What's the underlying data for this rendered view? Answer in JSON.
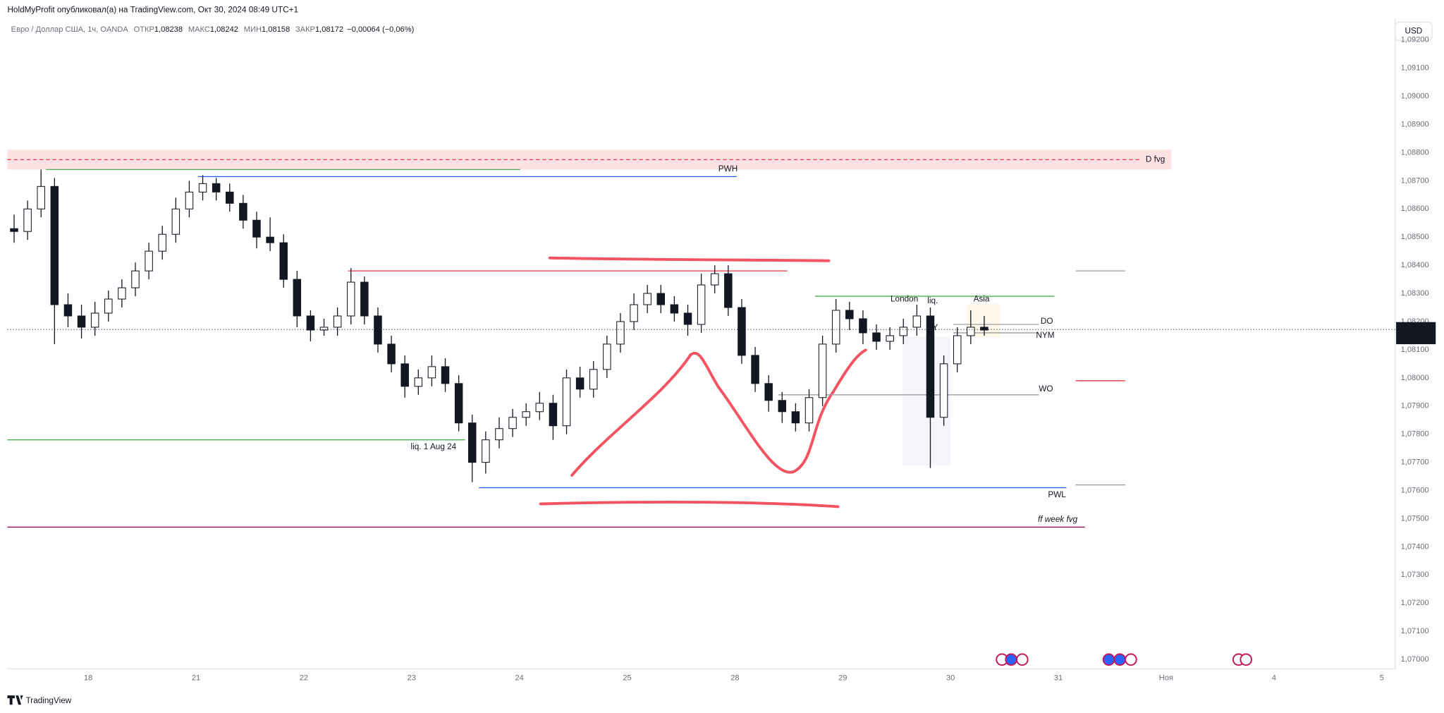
{
  "header": {
    "publisher": "HoldMyProfit опубликовал(а) на TradingView.com, Окт 30, 2024 08:49 UTC+1",
    "currency_button": "USD",
    "footer": "TradingView"
  },
  "chart_data": {
    "type": "candlestick",
    "symbol": "Евро / Доллар США, 1ч, OANDA",
    "info": [
      {
        "key": "ОТКР",
        "value": 1.08238,
        "label": "1,08238"
      },
      {
        "key": "МАКС",
        "value": 1.08242,
        "label": "1,08242"
      },
      {
        "key": "МИН",
        "value": 1.08158,
        "label": "1,08158"
      },
      {
        "key": "ЗАКР",
        "value": 1.08172,
        "label": "1,08172"
      }
    ],
    "change": "−0,00064 (−0,06%)",
    "last": {
      "value": 1.08172,
      "label": "1,08172"
    },
    "countdown": "10:13",
    "up_color": "#ffffff",
    "down_color": "#131722",
    "grid": false,
    "categories": [
      null,
      null,
      null,
      null,
      null,
      null,
      "18",
      null,
      null,
      null,
      null,
      null,
      null,
      null,
      "21",
      null,
      null,
      null,
      null,
      null,
      null,
      null,
      "22",
      null,
      null,
      null,
      null,
      null,
      null,
      null,
      "23",
      null,
      null,
      null,
      null,
      null,
      null,
      null,
      "24",
      null,
      null,
      null,
      null,
      null,
      null,
      null,
      "25",
      null,
      null,
      null,
      null,
      null,
      null,
      null,
      "28",
      null,
      null,
      null,
      null,
      null,
      null,
      null,
      "29",
      null,
      null,
      null,
      null,
      null,
      null,
      null,
      "30",
      null,
      null,
      null,
      null,
      null,
      null,
      null,
      "31",
      null,
      null,
      null,
      null,
      null,
      null,
      null,
      "Ноя",
      null,
      null,
      null,
      null,
      null,
      null,
      null,
      "4",
      null,
      null,
      null,
      null,
      null,
      null,
      null,
      "5"
    ],
    "open": [
      1.0853,
      1.0852,
      1.086,
      1.0868,
      1.0826,
      1.0822,
      1.0818,
      1.0823,
      1.0828,
      1.0832,
      1.0838,
      1.0845,
      1.0851,
      1.086,
      1.0866,
      1.0869,
      1.0866,
      1.0862,
      1.0856,
      1.085,
      1.0848,
      1.0835,
      1.0822,
      1.0817,
      1.0818,
      1.0822,
      1.0834,
      1.0822,
      1.0812,
      1.0805,
      1.0797,
      1.08,
      1.0804,
      1.0798,
      1.0784,
      1.077,
      1.0778,
      1.0782,
      1.0786,
      1.0788,
      1.0791,
      1.0783,
      1.08,
      1.0796,
      1.0803,
      1.0812,
      1.082,
      1.0826,
      1.083,
      1.0826,
      1.0823,
      1.0819,
      1.0833,
      1.0837,
      1.0825,
      1.0808,
      1.0798,
      1.0792,
      1.0788,
      1.0784,
      1.0793,
      1.0812,
      1.0824,
      1.0821,
      1.0816,
      1.0813,
      1.0815,
      1.0818,
      1.0822,
      1.0786,
      1.0805,
      1.0815,
      1.0818,
      null,
      null,
      null,
      null,
      null,
      null,
      null,
      null,
      null,
      null,
      null,
      null,
      null,
      null,
      null,
      null,
      null,
      null,
      null,
      null,
      null,
      null,
      null,
      null,
      null,
      null,
      null,
      null,
      null,
      null
    ],
    "high": [
      1.0858,
      1.0863,
      1.0874,
      1.0871,
      1.083,
      1.0826,
      1.0827,
      1.0831,
      1.0835,
      1.0841,
      1.0848,
      1.0854,
      1.0864,
      1.087,
      1.0872,
      1.0871,
      1.0869,
      1.0865,
      1.0859,
      1.0857,
      1.0851,
      1.0838,
      1.0824,
      1.0821,
      1.0825,
      1.0839,
      1.0836,
      1.0825,
      1.0815,
      1.0808,
      1.0803,
      1.0808,
      1.0807,
      1.0801,
      1.0787,
      1.0781,
      1.0786,
      1.0789,
      1.0791,
      1.0795,
      1.0794,
      1.0803,
      1.0804,
      1.0806,
      1.0815,
      1.0823,
      1.083,
      1.0833,
      1.0833,
      1.0829,
      1.0826,
      1.0837,
      1.084,
      1.084,
      1.0828,
      1.0811,
      1.0801,
      1.0795,
      1.0791,
      1.0796,
      1.0815,
      1.0828,
      1.0827,
      1.0824,
      1.0819,
      1.0818,
      1.0821,
      1.0826,
      1.0825,
      1.0808,
      1.0818,
      1.0824,
      1.0822,
      null,
      null,
      null,
      null,
      null,
      null,
      null,
      null,
      null,
      null,
      null,
      null,
      null,
      null,
      null,
      null,
      null,
      null,
      null,
      null,
      null,
      null,
      null,
      null,
      null,
      null,
      null,
      null,
      null,
      null
    ],
    "low": [
      1.0848,
      1.0849,
      1.0857,
      1.0812,
      1.0818,
      1.0814,
      1.0815,
      1.082,
      1.0825,
      1.0829,
      1.0835,
      1.0842,
      1.0848,
      1.0857,
      1.0863,
      1.0863,
      1.0859,
      1.0853,
      1.0846,
      1.0845,
      1.0832,
      1.0818,
      1.0813,
      1.0815,
      1.0815,
      1.0819,
      1.0819,
      1.0809,
      1.0802,
      1.0793,
      1.0794,
      1.0797,
      1.0795,
      1.0781,
      1.0763,
      1.0766,
      1.0775,
      1.0779,
      1.0783,
      1.0785,
      1.0778,
      1.078,
      1.0793,
      1.0793,
      1.08,
      1.0809,
      1.0817,
      1.0823,
      1.0823,
      1.082,
      1.0815,
      1.0816,
      1.083,
      1.0822,
      1.0805,
      1.0795,
      1.0788,
      1.0784,
      1.0781,
      1.0781,
      1.079,
      1.0809,
      1.0817,
      1.0812,
      1.081,
      1.081,
      1.0812,
      1.0815,
      1.0768,
      1.0783,
      1.0802,
      1.0812,
      1.0815,
      null,
      null,
      null,
      null,
      null,
      null,
      null,
      null,
      null,
      null,
      null,
      null,
      null,
      null,
      null,
      null,
      null,
      null,
      null,
      null,
      null,
      null,
      null,
      null,
      null,
      null,
      null,
      null,
      null,
      null
    ],
    "close": [
      1.0852,
      1.086,
      1.0868,
      1.0826,
      1.0822,
      1.0818,
      1.0823,
      1.0828,
      1.0832,
      1.0838,
      1.0845,
      1.0851,
      1.086,
      1.0866,
      1.0869,
      1.0866,
      1.0862,
      1.0856,
      1.085,
      1.0848,
      1.0835,
      1.0822,
      1.0817,
      1.0818,
      1.0822,
      1.0834,
      1.0822,
      1.0812,
      1.0805,
      1.0797,
      1.08,
      1.0804,
      1.0798,
      1.0784,
      1.077,
      1.0778,
      1.0782,
      1.0786,
      1.0788,
      1.0791,
      1.0783,
      1.08,
      1.0796,
      1.0803,
      1.0812,
      1.082,
      1.0826,
      1.083,
      1.0826,
      1.0823,
      1.0819,
      1.0833,
      1.0837,
      1.0825,
      1.0808,
      1.0798,
      1.0792,
      1.0788,
      1.0784,
      1.0793,
      1.0812,
      1.0824,
      1.0821,
      1.0816,
      1.0813,
      1.0815,
      1.0818,
      1.0822,
      1.0786,
      1.0805,
      1.0815,
      1.0818,
      1.0817,
      null,
      null,
      null,
      null,
      null,
      null,
      null,
      null,
      null,
      null,
      null,
      null,
      null,
      null,
      null,
      null,
      null,
      null,
      null,
      null,
      null,
      null,
      null,
      null,
      null,
      null,
      null,
      null,
      null,
      null
    ],
    "ylim": [
      1.06967,
      1.0927
    ],
    "yticks": [
      {
        "value": 1.07,
        "label": "1,07000"
      },
      {
        "value": 1.071,
        "label": "1,07100"
      },
      {
        "value": 1.072,
        "label": "1,07200"
      },
      {
        "value": 1.073,
        "label": "1,07300"
      },
      {
        "value": 1.074,
        "label": "1,07400"
      },
      {
        "value": 1.075,
        "label": "1,07500"
      },
      {
        "value": 1.076,
        "label": "1,07600"
      },
      {
        "value": 1.077,
        "label": "1,07700"
      },
      {
        "value": 1.078,
        "label": "1,07800"
      },
      {
        "value": 1.079,
        "label": "1,07900"
      },
      {
        "value": 1.08,
        "label": "1,08000"
      },
      {
        "value": 1.081,
        "label": "1,08100"
      },
      {
        "value": 1.082,
        "label": "1,08200"
      },
      {
        "value": 1.083,
        "label": "1,08300"
      },
      {
        "value": 1.084,
        "label": "1,08400"
      },
      {
        "value": 1.085,
        "label": "1,08500"
      },
      {
        "value": 1.086,
        "label": "1,08600"
      },
      {
        "value": 1.087,
        "label": "1,08700"
      },
      {
        "value": 1.088,
        "label": "1,08800"
      },
      {
        "value": 1.089,
        "label": "1,08900"
      },
      {
        "value": 1.09,
        "label": "1,09000"
      },
      {
        "value": 1.091,
        "label": "1,09100"
      },
      {
        "value": 1.092,
        "label": "1,09200"
      }
    ],
    "zones": [
      {
        "label": "D fvg",
        "range": [
          1.0874,
          1.0881
        ],
        "color": "#f23645"
      }
    ],
    "levels": [
      {
        "value": 1.0874,
        "color": "#4caf50"
      },
      {
        "label": "PWH",
        "value": 1.08715,
        "color": "#2962ff"
      },
      {
        "value": 1.0838,
        "color": "#f23645"
      },
      {
        "label": "liq. 1 Aug 24",
        "value": 1.0778,
        "color": "#4caf50"
      },
      {
        "label": "PWL",
        "value": 1.0761,
        "color": "#2962ff"
      },
      {
        "label": "ff week fvg",
        "value": 1.0747,
        "color": "#880e4f"
      },
      {
        "label": "WO",
        "value": 1.0794,
        "color": "#9e9e9e"
      },
      {
        "value": 1.0829,
        "color": "#4caf50"
      },
      {
        "value": 1.0838,
        "color": "#9e9e9e"
      },
      {
        "value": 1.0762,
        "color": "#9e9e9e"
      },
      {
        "value": 1.0799,
        "color": "#f23645"
      },
      {
        "label": "DO",
        "value": 1.0819,
        "color": "#9e9e9e"
      },
      {
        "label": "NYM",
        "value": 1.0816,
        "color": "#9e9e9e"
      }
    ],
    "annotations": [
      "London",
      "liq.",
      "Asia",
      "NY"
    ]
  }
}
